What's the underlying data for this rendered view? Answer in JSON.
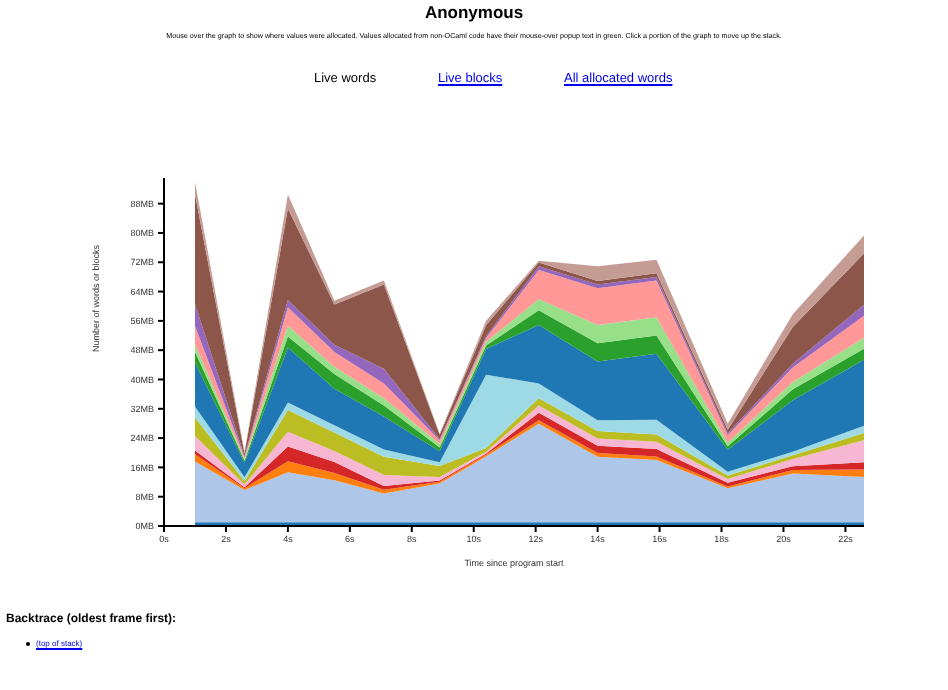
{
  "chart_data": {
    "type": "area",
    "stacked": true,
    "title": "Anonymous",
    "subtitle": "Mouse over the graph to show where values were allocated. Values allocated from non-OCaml code have their mouse-over popup text in green. Click a portion of the graph to move up the stack.",
    "annotations": [
      "Live words",
      "Live blocks",
      "All allocated words",
      "Backtrace (oldest frame first):",
      "(top of stack)"
    ],
    "xlabel": "Time since program start",
    "ylabel": "Number of words or blocks",
    "x": [
      1.0,
      2.6,
      4.0,
      5.5,
      7.1,
      8.9,
      10.4,
      12.1,
      14.0,
      15.9,
      18.2,
      20.3,
      22.6
    ],
    "xlim": [
      0,
      22.6
    ],
    "xticks": [
      {
        "value": 0,
        "label": "0s"
      },
      {
        "value": 2,
        "label": "2s"
      },
      {
        "value": 4,
        "label": "4s"
      },
      {
        "value": 6,
        "label": "6s"
      },
      {
        "value": 8,
        "label": "8s"
      },
      {
        "value": 10,
        "label": "10s"
      },
      {
        "value": 12,
        "label": "12s"
      },
      {
        "value": 14,
        "label": "14s"
      },
      {
        "value": 16,
        "label": "16s"
      },
      {
        "value": 18,
        "label": "18s"
      },
      {
        "value": 20,
        "label": "20s"
      },
      {
        "value": 22,
        "label": "22s"
      }
    ],
    "ylim": [
      0,
      95
    ],
    "yticks": [
      {
        "value": 0,
        "label": "0MB"
      },
      {
        "value": 8,
        "label": "8MB"
      },
      {
        "value": 16,
        "label": "16MB"
      },
      {
        "value": 24,
        "label": "24MB"
      },
      {
        "value": 32,
        "label": "32MB"
      },
      {
        "value": 40,
        "label": "40MB"
      },
      {
        "value": 48,
        "label": "48MB"
      },
      {
        "value": 56,
        "label": "56MB"
      },
      {
        "value": 64,
        "label": "64MB"
      },
      {
        "value": 72,
        "label": "72MB"
      },
      {
        "value": 80,
        "label": "80MB"
      },
      {
        "value": 88,
        "label": "88MB"
      }
    ],
    "series": [
      {
        "color": "#1f77b4",
        "values": [
          1,
          1,
          1,
          1,
          1,
          1,
          1,
          1,
          1,
          1,
          1,
          1,
          1
        ]
      },
      {
        "color": "#aec7e8",
        "values": [
          16.6,
          8.8,
          13.7,
          11.5,
          7.9,
          10.6,
          18,
          26.9,
          17.9,
          17,
          9.3,
          13.3,
          12.4
        ]
      },
      {
        "color": "#ff7f0e",
        "values": [
          2,
          0.5,
          3,
          2,
          1,
          0.5,
          0.5,
          1,
          1,
          1,
          0.5,
          1,
          2
        ]
      },
      {
        "color": "#d62728",
        "values": [
          1,
          0.3,
          4,
          3,
          1,
          0.3,
          0.3,
          2,
          2,
          2,
          1,
          1,
          2
        ]
      },
      {
        "color": "#f7b6d2",
        "values": [
          4,
          0.7,
          4,
          3,
          3,
          1,
          0.5,
          2,
          2,
          2,
          1,
          2,
          6
        ]
      },
      {
        "color": "#bcbd22",
        "values": [
          5,
          1,
          6,
          5,
          5,
          3,
          1,
          2,
          2,
          2,
          1,
          1,
          2
        ]
      },
      {
        "color": "#9edae5",
        "values": [
          3,
          1,
          2,
          2,
          2,
          1,
          20,
          4,
          3,
          4,
          1,
          1,
          2
        ]
      },
      {
        "color": "#1f77b4",
        "values": [
          12,
          4,
          15,
          10,
          9,
          3,
          7,
          16,
          16,
          18,
          6,
          14,
          18
        ]
      },
      {
        "color": "#2ca02c",
        "values": [
          3,
          0.5,
          3,
          4,
          3,
          1,
          1,
          4,
          5,
          5,
          1,
          3,
          3
        ]
      },
      {
        "color": "#98df8a",
        "values": [
          2,
          0.5,
          3,
          2,
          2,
          1,
          1,
          3,
          5,
          5,
          1,
          2,
          3
        ]
      },
      {
        "color": "#ff9896",
        "values": [
          5,
          0.5,
          5,
          4,
          4,
          1,
          1,
          8,
          10,
          10,
          2,
          4,
          6
        ]
      },
      {
        "color": "#9467bd",
        "values": [
          6,
          0.3,
          2,
          2,
          4,
          0.3,
          0.5,
          1,
          1,
          1,
          0.5,
          1,
          3
        ]
      },
      {
        "color": "#8c564b",
        "values": [
          30,
          0.7,
          25,
          11,
          23,
          1.2,
          3,
          1,
          1,
          1,
          1,
          10,
          14
        ]
      },
      {
        "color": "#c49c94",
        "values": [
          3.4,
          0.5,
          3.8,
          1,
          1.1,
          0.3,
          1.2,
          0.5,
          4,
          3.7,
          1.6,
          3.5,
          4.9
        ]
      }
    ]
  }
}
